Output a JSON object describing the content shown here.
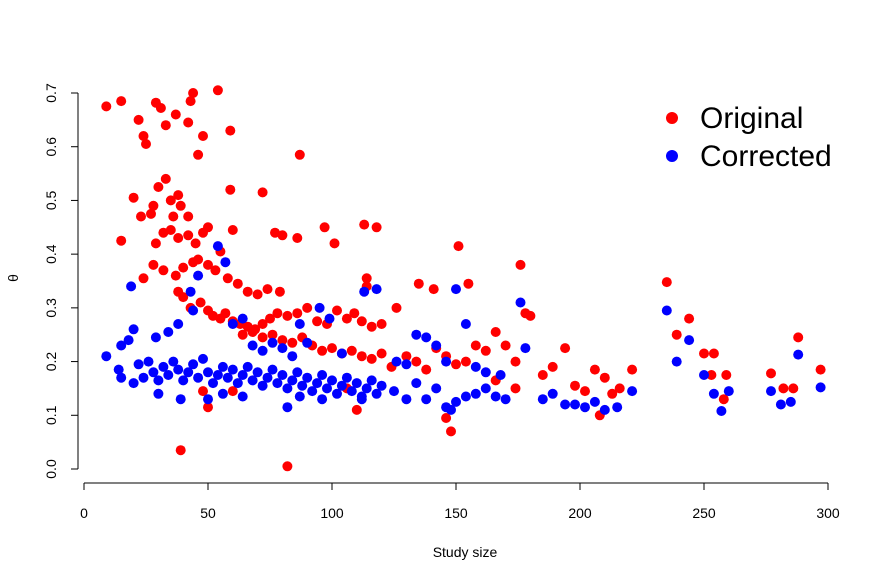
{
  "chart_data": {
    "type": "scatter",
    "title": "",
    "xlabel": "Study size",
    "ylabel": "θ",
    "xlim": [
      0,
      300
    ],
    "ylim": [
      0,
      0.7
    ],
    "x_ticks": [
      "0",
      "50",
      "100",
      "150",
      "200",
      "250",
      "300"
    ],
    "y_ticks": [
      "0.0",
      "0.1",
      "0.2",
      "0.3",
      "0.4",
      "0.5",
      "0.6",
      "0.7"
    ],
    "grid": false,
    "legend_position": "top-right",
    "series": [
      {
        "name": "Original",
        "color": "#ff0000",
        "points": [
          [
            9,
            0.675
          ],
          [
            15,
            0.685
          ],
          [
            29,
            0.682
          ],
          [
            44,
            0.7
          ],
          [
            54,
            0.705
          ],
          [
            43,
            0.685
          ],
          [
            37,
            0.66
          ],
          [
            42,
            0.645
          ],
          [
            31,
            0.672
          ],
          [
            22,
            0.65
          ],
          [
            24,
            0.62
          ],
          [
            25,
            0.605
          ],
          [
            33,
            0.64
          ],
          [
            48,
            0.62
          ],
          [
            59,
            0.63
          ],
          [
            46,
            0.585
          ],
          [
            87,
            0.585
          ],
          [
            20,
            0.505
          ],
          [
            28,
            0.49
          ],
          [
            30,
            0.525
          ],
          [
            33,
            0.54
          ],
          [
            35,
            0.5
          ],
          [
            38,
            0.51
          ],
          [
            39,
            0.49
          ],
          [
            42,
            0.47
          ],
          [
            36,
            0.47
          ],
          [
            27,
            0.475
          ],
          [
            23,
            0.47
          ],
          [
            59,
            0.52
          ],
          [
            72,
            0.515
          ],
          [
            15,
            0.425
          ],
          [
            29,
            0.42
          ],
          [
            32,
            0.44
          ],
          [
            35,
            0.445
          ],
          [
            38,
            0.43
          ],
          [
            42,
            0.435
          ],
          [
            45,
            0.42
          ],
          [
            48,
            0.44
          ],
          [
            50,
            0.45
          ],
          [
            55,
            0.405
          ],
          [
            60,
            0.445
          ],
          [
            77,
            0.44
          ],
          [
            80,
            0.435
          ],
          [
            86,
            0.43
          ],
          [
            97,
            0.45
          ],
          [
            101,
            0.42
          ],
          [
            113,
            0.455
          ],
          [
            118,
            0.45
          ],
          [
            151,
            0.415
          ],
          [
            28,
            0.38
          ],
          [
            32,
            0.37
          ],
          [
            37,
            0.36
          ],
          [
            40,
            0.375
          ],
          [
            44,
            0.385
          ],
          [
            46,
            0.39
          ],
          [
            50,
            0.38
          ],
          [
            53,
            0.37
          ],
          [
            58,
            0.355
          ],
          [
            62,
            0.345
          ],
          [
            66,
            0.33
          ],
          [
            70,
            0.325
          ],
          [
            74,
            0.335
          ],
          [
            79,
            0.33
          ],
          [
            24,
            0.355
          ],
          [
            114,
            0.355
          ],
          [
            114,
            0.34
          ],
          [
            135,
            0.345
          ],
          [
            141,
            0.335
          ],
          [
            155,
            0.345
          ],
          [
            176,
            0.38
          ],
          [
            38,
            0.33
          ],
          [
            40,
            0.32
          ],
          [
            43,
            0.3
          ],
          [
            47,
            0.31
          ],
          [
            50,
            0.295
          ],
          [
            52,
            0.285
          ],
          [
            55,
            0.28
          ],
          [
            57,
            0.29
          ],
          [
            60,
            0.275
          ],
          [
            63,
            0.27
          ],
          [
            66,
            0.265
          ],
          [
            69,
            0.26
          ],
          [
            72,
            0.27
          ],
          [
            75,
            0.28
          ],
          [
            78,
            0.29
          ],
          [
            82,
            0.285
          ],
          [
            86,
            0.29
          ],
          [
            90,
            0.3
          ],
          [
            94,
            0.275
          ],
          [
            98,
            0.27
          ],
          [
            102,
            0.295
          ],
          [
            106,
            0.28
          ],
          [
            109,
            0.29
          ],
          [
            112,
            0.275
          ],
          [
            116,
            0.265
          ],
          [
            120,
            0.27
          ],
          [
            126,
            0.3
          ],
          [
            178,
            0.29
          ],
          [
            180,
            0.285
          ],
          [
            64,
            0.25
          ],
          [
            68,
            0.255
          ],
          [
            72,
            0.245
          ],
          [
            76,
            0.25
          ],
          [
            80,
            0.24
          ],
          [
            84,
            0.235
          ],
          [
            88,
            0.245
          ],
          [
            92,
            0.23
          ],
          [
            96,
            0.22
          ],
          [
            100,
            0.225
          ],
          [
            104,
            0.215
          ],
          [
            108,
            0.22
          ],
          [
            112,
            0.21
          ],
          [
            116,
            0.205
          ],
          [
            120,
            0.215
          ],
          [
            124,
            0.19
          ],
          [
            130,
            0.21
          ],
          [
            134,
            0.2
          ],
          [
            138,
            0.185
          ],
          [
            142,
            0.225
          ],
          [
            146,
            0.21
          ],
          [
            150,
            0.195
          ],
          [
            154,
            0.2
          ],
          [
            158,
            0.23
          ],
          [
            162,
            0.22
          ],
          [
            166,
            0.255
          ],
          [
            170,
            0.23
          ],
          [
            174,
            0.2
          ],
          [
            235,
            0.348
          ],
          [
            239,
            0.25
          ],
          [
            244,
            0.28
          ],
          [
            250,
            0.215
          ],
          [
            254,
            0.215
          ],
          [
            259,
            0.175
          ],
          [
            277,
            0.178
          ],
          [
            282,
            0.15
          ],
          [
            286,
            0.15
          ],
          [
            288,
            0.245
          ],
          [
            297,
            0.185
          ],
          [
            185,
            0.175
          ],
          [
            189,
            0.19
          ],
          [
            194,
            0.225
          ],
          [
            198,
            0.155
          ],
          [
            202,
            0.145
          ],
          [
            206,
            0.185
          ],
          [
            208,
            0.1
          ],
          [
            210,
            0.17
          ],
          [
            213,
            0.14
          ],
          [
            216,
            0.15
          ],
          [
            221,
            0.185
          ],
          [
            258,
            0.13
          ],
          [
            253,
            0.175
          ],
          [
            39,
            0.035
          ],
          [
            82,
            0.005
          ],
          [
            148,
            0.07
          ],
          [
            146,
            0.095
          ],
          [
            50,
            0.115
          ],
          [
            48,
            0.145
          ],
          [
            60,
            0.145
          ],
          [
            106,
            0.15
          ],
          [
            110,
            0.11
          ],
          [
            166,
            0.165
          ],
          [
            174,
            0.15
          ]
        ]
      },
      {
        "name": "Corrected",
        "color": "#0000ff",
        "points": [
          [
            9,
            0.21
          ],
          [
            14,
            0.185
          ],
          [
            15,
            0.17
          ],
          [
            18,
            0.24
          ],
          [
            20,
            0.16
          ],
          [
            22,
            0.195
          ],
          [
            24,
            0.17
          ],
          [
            26,
            0.2
          ],
          [
            28,
            0.18
          ],
          [
            30,
            0.165
          ],
          [
            32,
            0.19
          ],
          [
            34,
            0.175
          ],
          [
            36,
            0.2
          ],
          [
            38,
            0.185
          ],
          [
            40,
            0.165
          ],
          [
            42,
            0.18
          ],
          [
            44,
            0.195
          ],
          [
            46,
            0.17
          ],
          [
            48,
            0.205
          ],
          [
            50,
            0.18
          ],
          [
            52,
            0.16
          ],
          [
            54,
            0.175
          ],
          [
            56,
            0.19
          ],
          [
            58,
            0.17
          ],
          [
            60,
            0.185
          ],
          [
            62,
            0.16
          ],
          [
            64,
            0.175
          ],
          [
            66,
            0.19
          ],
          [
            68,
            0.165
          ],
          [
            70,
            0.18
          ],
          [
            72,
            0.155
          ],
          [
            74,
            0.17
          ],
          [
            76,
            0.185
          ],
          [
            78,
            0.16
          ],
          [
            80,
            0.175
          ],
          [
            82,
            0.15
          ],
          [
            84,
            0.165
          ],
          [
            86,
            0.18
          ],
          [
            88,
            0.155
          ],
          [
            90,
            0.17
          ],
          [
            92,
            0.145
          ],
          [
            94,
            0.16
          ],
          [
            96,
            0.175
          ],
          [
            98,
            0.15
          ],
          [
            100,
            0.165
          ],
          [
            102,
            0.14
          ],
          [
            104,
            0.155
          ],
          [
            106,
            0.17
          ],
          [
            108,
            0.145
          ],
          [
            110,
            0.16
          ],
          [
            112,
            0.135
          ],
          [
            114,
            0.15
          ],
          [
            116,
            0.165
          ],
          [
            118,
            0.14
          ],
          [
            120,
            0.155
          ],
          [
            19,
            0.34
          ],
          [
            20,
            0.26
          ],
          [
            15,
            0.23
          ],
          [
            29,
            0.245
          ],
          [
            34,
            0.255
          ],
          [
            38,
            0.27
          ],
          [
            43,
            0.33
          ],
          [
            44,
            0.295
          ],
          [
            46,
            0.36
          ],
          [
            54,
            0.415
          ],
          [
            57,
            0.385
          ],
          [
            60,
            0.27
          ],
          [
            64,
            0.28
          ],
          [
            68,
            0.23
          ],
          [
            72,
            0.22
          ],
          [
            76,
            0.235
          ],
          [
            80,
            0.225
          ],
          [
            84,
            0.21
          ],
          [
            87,
            0.27
          ],
          [
            90,
            0.235
          ],
          [
            95,
            0.3
          ],
          [
            99,
            0.28
          ],
          [
            104,
            0.215
          ],
          [
            113,
            0.33
          ],
          [
            118,
            0.335
          ],
          [
            126,
            0.2
          ],
          [
            130,
            0.195
          ],
          [
            134,
            0.25
          ],
          [
            138,
            0.245
          ],
          [
            142,
            0.23
          ],
          [
            146,
            0.2
          ],
          [
            150,
            0.335
          ],
          [
            154,
            0.27
          ],
          [
            158,
            0.19
          ],
          [
            162,
            0.18
          ],
          [
            168,
            0.175
          ],
          [
            176,
            0.31
          ],
          [
            178,
            0.225
          ],
          [
            39,
            0.13
          ],
          [
            30,
            0.14
          ],
          [
            50,
            0.13
          ],
          [
            56,
            0.14
          ],
          [
            64,
            0.135
          ],
          [
            82,
            0.115
          ],
          [
            87,
            0.135
          ],
          [
            96,
            0.13
          ],
          [
            112,
            0.13
          ],
          [
            125,
            0.145
          ],
          [
            130,
            0.13
          ],
          [
            134,
            0.16
          ],
          [
            138,
            0.13
          ],
          [
            142,
            0.15
          ],
          [
            146,
            0.115
          ],
          [
            148,
            0.11
          ],
          [
            150,
            0.125
          ],
          [
            154,
            0.135
          ],
          [
            158,
            0.14
          ],
          [
            162,
            0.15
          ],
          [
            166,
            0.135
          ],
          [
            170,
            0.13
          ],
          [
            185,
            0.13
          ],
          [
            189,
            0.14
          ],
          [
            194,
            0.12
          ],
          [
            198,
            0.12
          ],
          [
            202,
            0.115
          ],
          [
            206,
            0.125
          ],
          [
            210,
            0.11
          ],
          [
            215,
            0.115
          ],
          [
            221,
            0.145
          ],
          [
            235,
            0.295
          ],
          [
            239,
            0.2
          ],
          [
            244,
            0.24
          ],
          [
            250,
            0.175
          ],
          [
            254,
            0.14
          ],
          [
            257,
            0.108
          ],
          [
            260,
            0.145
          ],
          [
            277,
            0.145
          ],
          [
            281,
            0.12
          ],
          [
            285,
            0.125
          ],
          [
            288,
            0.213
          ],
          [
            297,
            0.152
          ]
        ]
      }
    ]
  }
}
